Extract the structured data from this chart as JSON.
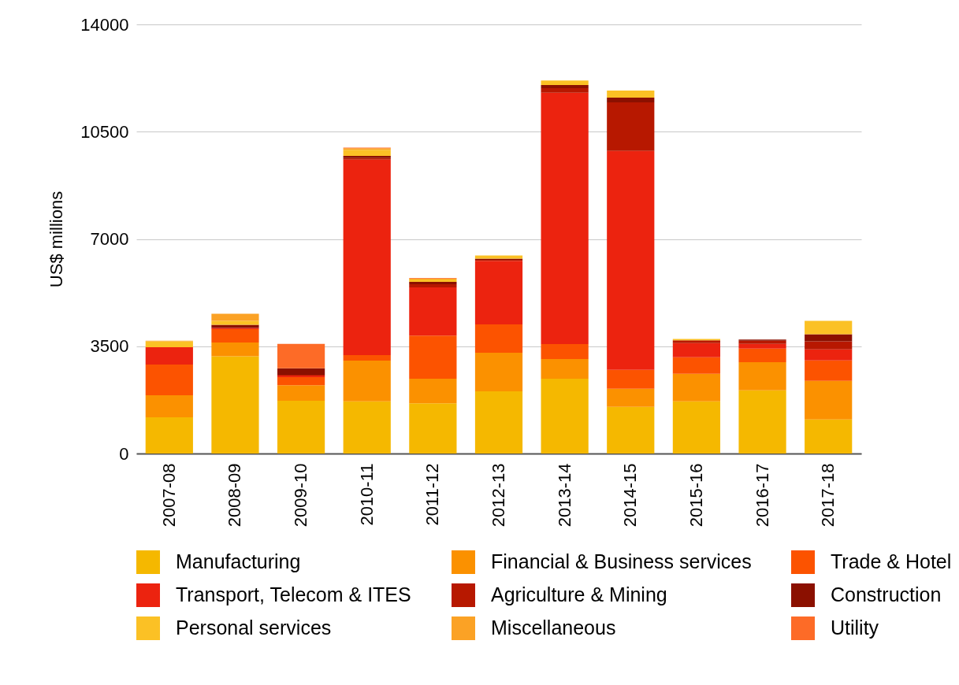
{
  "chart_data": {
    "type": "bar",
    "stacked": true,
    "ylabel": "US$ millions",
    "categories": [
      "2007-08",
      "2008-09",
      "2009-10",
      "2010-11",
      "2011-12",
      "2012-13",
      "2013-14",
      "2014-15",
      "2015-16",
      "2016-17",
      "2017-18"
    ],
    "ylim": [
      0,
      14000
    ],
    "yticks": [
      0,
      3500,
      7000,
      10500,
      14000
    ],
    "grid": "y",
    "legend": "bottom",
    "series": [
      {
        "name": "Manufacturing",
        "color": "#f5b800",
        "values": [
          1180,
          3170,
          1720,
          1700,
          1640,
          2030,
          2440,
          1520,
          1700,
          2060,
          1110
        ]
      },
      {
        "name": "Financial & Business services",
        "color": "#fb9100",
        "values": [
          720,
          450,
          510,
          1330,
          800,
          1260,
          640,
          590,
          900,
          920,
          1260
        ]
      },
      {
        "name": "Trade & Hotel",
        "color": "#fc5300",
        "values": [
          1000,
          440,
          260,
          180,
          1410,
          920,
          490,
          620,
          540,
          440,
          670
        ]
      },
      {
        "name": "Transport, Telecom & ITES",
        "color": "#ec230f",
        "values": [
          570,
          40,
          50,
          6380,
          1570,
          2080,
          8200,
          7140,
          460,
          160,
          360
        ]
      },
      {
        "name": "Agriculture & Mining",
        "color": "#b71800",
        "values": [
          0,
          null,
          30,
          50,
          100,
          30,
          150,
          1590,
          90,
          100,
          260
        ]
      },
      {
        "name": "Construction",
        "color": "#8b1000",
        "values": [
          0,
          100,
          210,
          70,
          80,
          40,
          100,
          150,
          null,
          40,
          230
        ]
      },
      {
        "name": "Personal services",
        "color": "#fbc125",
        "values": [
          190,
          130,
          0,
          200,
          80,
          100,
          150,
          230,
          50,
          0,
          440
        ]
      },
      {
        "name": "Miscellaneous",
        "color": "#fba225",
        "values": [
          20,
          230,
          0,
          50,
          30,
          0,
          0,
          0,
          0,
          0,
          0
        ]
      },
      {
        "name": "Utility",
        "color": "#fd6b27",
        "values": [
          0,
          0,
          800,
          20,
          20,
          0,
          0,
          0,
          0,
          0,
          0
        ]
      }
    ]
  }
}
